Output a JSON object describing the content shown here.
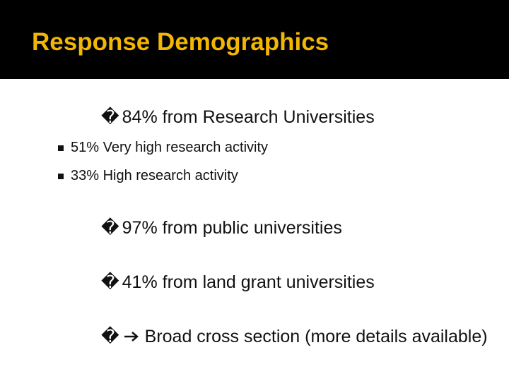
{
  "header": {
    "title": "Response Demographics"
  },
  "bullets": [
    {
      "marker": "�",
      "text": "84% from Research Universities",
      "sub": [
        "51% Very high research activity",
        "33% High research activity"
      ]
    },
    {
      "marker": "�",
      "text": "97% from public universities"
    },
    {
      "marker": "�",
      "text": "41% from land grant universities"
    },
    {
      "marker": "�",
      "text": "Broad cross section (more details available)"
    }
  ]
}
